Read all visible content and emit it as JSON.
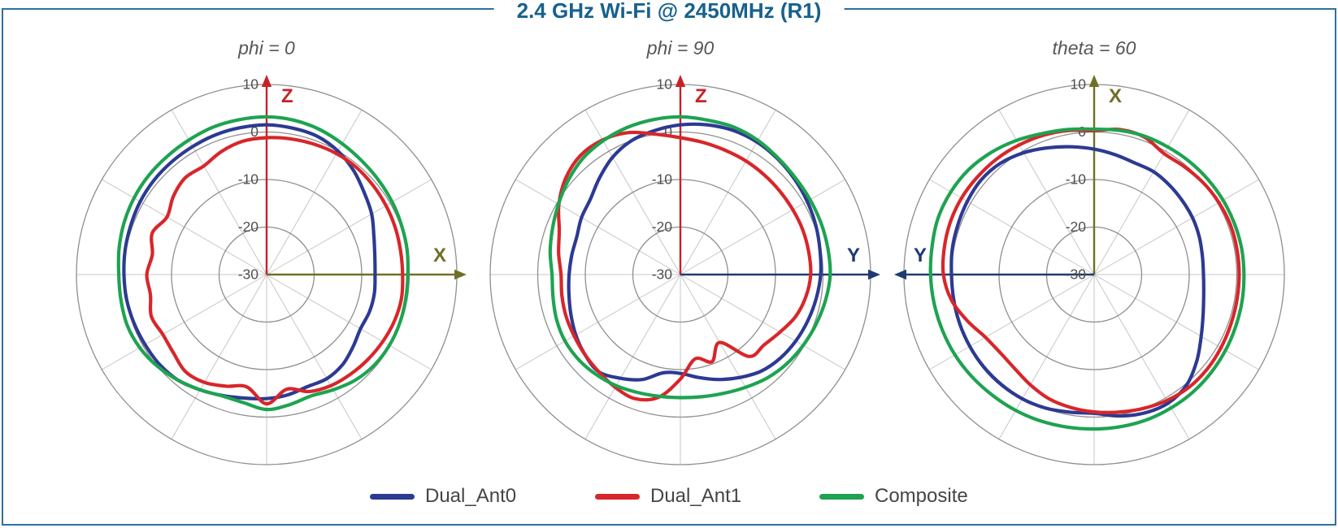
{
  "header": {
    "title": "2.4 GHz Wi-Fi @ 2450MHz (R1)"
  },
  "style": {
    "border_color": "#2e719f",
    "title_color": "#17618e",
    "plot_title_color": "#565656",
    "ring_color": "#8f8f8f",
    "spoke_color": "#c7c7c7",
    "tick_label_color": "#4f4f4f",
    "legend_text_color": "#454545"
  },
  "legend": {
    "items": [
      {
        "label": "Dual_Ant0",
        "color": "#2c3a92"
      },
      {
        "label": "Dual_Ant1",
        "color": "#d8262a"
      },
      {
        "label": "Composite",
        "color": "#1ea351"
      }
    ]
  },
  "chart_data": [
    {
      "type": "line",
      "polar": true,
      "title": "phi = 0",
      "radial_ticks": [
        10,
        0,
        -10,
        -20,
        -30
      ],
      "r_range": [
        -30,
        10
      ],
      "r_unit": "dB",
      "angle_zero": "top",
      "direction": "clockwise",
      "angle_step_deg": 10,
      "grid": {
        "spoke_step_deg": 30
      },
      "axes": [
        {
          "label": "Z",
          "direction": "up",
          "color": "#c62227"
        },
        {
          "label": "X",
          "direction": "right",
          "color": "#6f7026"
        }
      ],
      "series": [
        {
          "name": "Dual_Ant0",
          "color": "#2c3a92",
          "values": [
            1.5,
            1.3,
            1.0,
            0.0,
            -1.5,
            -3.2,
            -4.5,
            -6.0,
            -6.9,
            -7.2,
            -7.0,
            -7.0,
            -7.2,
            -6.3,
            -5.2,
            -4.7,
            -4.9,
            -4.3,
            -3.9,
            -3.6,
            -2.9,
            -2.0,
            -1.0,
            -0.6,
            -0.5,
            -0.3,
            -0.1,
            0.0,
            0.2,
            0.4,
            0.7,
            0.9,
            1.0,
            1.1,
            1.3,
            1.4
          ]
        },
        {
          "name": "Dual_Ant1",
          "color": "#d8262a",
          "values": [
            -1.2,
            -1.0,
            -0.8,
            -0.6,
            -0.6,
            -0.8,
            -1.0,
            -1.2,
            -1.4,
            -1.4,
            -1.2,
            -1.4,
            -1.8,
            -2.2,
            -2.6,
            -3.0,
            -3.8,
            -5.5,
            -2.8,
            -6.0,
            -5.0,
            -3.8,
            -3.4,
            -4.4,
            -4.8,
            -4.2,
            -5.2,
            -4.8,
            -5.6,
            -4.4,
            -5.8,
            -4.4,
            -3.4,
            -3.6,
            -2.4,
            -1.5
          ]
        },
        {
          "name": "Composite",
          "color": "#1ea351",
          "values": [
            3.2,
            3.0,
            2.5,
            1.8,
            1.2,
            0.8,
            0.5,
            0.2,
            0.0,
            -0.3,
            -0.3,
            -0.2,
            -0.2,
            -0.4,
            -1.0,
            -2.0,
            -2.8,
            -2.2,
            -1.6,
            -2.6,
            -2.8,
            -2.0,
            -1.0,
            0.0,
            0.8,
            1.2,
            1.1,
            1.1,
            1.5,
            1.9,
            2.2,
            2.4,
            2.5,
            2.7,
            3.0,
            3.1
          ]
        }
      ]
    },
    {
      "type": "line",
      "polar": true,
      "title": "phi = 90",
      "radial_ticks": [
        10,
        0,
        -10,
        -20,
        -30
      ],
      "r_range": [
        -30,
        10
      ],
      "r_unit": "dB",
      "angle_zero": "top",
      "direction": "clockwise",
      "angle_step_deg": 10,
      "grid": {
        "spoke_step_deg": 30
      },
      "axes": [
        {
          "label": "Z",
          "direction": "up",
          "color": "#c62227"
        },
        {
          "label": "Y",
          "direction": "right",
          "color": "#1f3a70"
        }
      ],
      "series": [
        {
          "name": "Dual_Ant0",
          "color": "#2c3a92",
          "values": [
            1.5,
            2.0,
            2.3,
            2.2,
            1.8,
            1.3,
            0.8,
            0.3,
            -0.2,
            -0.5,
            -1.0,
            -1.5,
            -2.0,
            -2.6,
            -3.5,
            -5.0,
            -6.5,
            -8.0,
            -9.2,
            -9.0,
            -6.5,
            -4.8,
            -3.3,
            -3.8,
            -4.6,
            -5.5,
            -6.2,
            -6.6,
            -6.8,
            -6.8,
            -6.0,
            -5.3,
            -3.5,
            -1.5,
            0.0,
            0.8
          ]
        },
        {
          "name": "Dual_Ant1",
          "color": "#d8262a",
          "values": [
            -1.2,
            -1.8,
            -2.2,
            -2.4,
            -2.6,
            -2.7,
            -2.7,
            -2.6,
            -2.6,
            -2.6,
            -3.2,
            -4.2,
            -5.8,
            -7.0,
            -7.5,
            -13.5,
            -10.5,
            -12.0,
            -8.0,
            -3.8,
            -2.2,
            -2.6,
            -3.3,
            -3.8,
            -4.2,
            -4.4,
            -4.7,
            -4.9,
            -4.0,
            -2.9,
            -0.5,
            1.5,
            2.7,
            2.7,
            1.8,
            0.0
          ]
        },
        {
          "name": "Composite",
          "color": "#1ea351",
          "values": [
            3.2,
            3.0,
            3.0,
            2.6,
            2.0,
            1.6,
            1.5,
            1.5,
            1.5,
            1.5,
            1.0,
            0.4,
            -0.2,
            -0.8,
            -1.6,
            -2.6,
            -3.4,
            -3.9,
            -4.1,
            -4.0,
            -3.6,
            -3.0,
            -2.5,
            -2.1,
            -2.0,
            -2.3,
            -2.8,
            -3.0,
            -2.2,
            -1.4,
            -0.4,
            0.8,
            1.9,
            2.5,
            2.9,
            3.1
          ]
        }
      ]
    },
    {
      "type": "line",
      "polar": true,
      "title": "theta = 60",
      "radial_ticks": [
        10,
        0,
        -10,
        -20,
        -30
      ],
      "r_range": [
        -30,
        10
      ],
      "r_unit": "dB",
      "angle_zero": "top",
      "direction": "clockwise",
      "angle_step_deg": 10,
      "grid": {
        "spoke_step_deg": 30
      },
      "axes": [
        {
          "label": "X",
          "direction": "up",
          "color": "#6f7026"
        },
        {
          "label": "Y",
          "direction": "left",
          "color": "#1f3a70"
        }
      ],
      "series": [
        {
          "name": "Dual_Ant0",
          "color": "#2c3a92",
          "values": [
            -3.6,
            -4.4,
            -5.0,
            -5.0,
            -5.4,
            -5.8,
            -6.1,
            -6.5,
            -6.9,
            -7.0,
            -6.6,
            -5.6,
            -4.0,
            -1.8,
            0.3,
            1.2,
            1.0,
            0.2,
            -0.8,
            -0.6,
            -0.1,
            0.2,
            0.3,
            0.3,
            0.2,
            0.1,
            0.0,
            0.0,
            0.3,
            0.5,
            0.8,
            1.0,
            0.6,
            -0.4,
            -1.6,
            -2.7
          ]
        },
        {
          "name": "Dual_Ant1",
          "color": "#d8262a",
          "values": [
            0.3,
            1.0,
            0.8,
            -0.6,
            -0.4,
            0.0,
            0.3,
            0.5,
            0.5,
            0.5,
            0.5,
            0.6,
            0.8,
            1.0,
            1.0,
            0.6,
            0.0,
            -0.6,
            -1.1,
            -1.6,
            -2.2,
            -3.2,
            -4.1,
            -4.3,
            -3.6,
            -1.6,
            0.5,
            1.7,
            2.0,
            2.2,
            2.2,
            2.0,
            1.8,
            1.5,
            1.2,
            0.8
          ]
        },
        {
          "name": "Composite",
          "color": "#1ea351",
          "values": [
            0.6,
            0.8,
            1.0,
            1.0,
            1.1,
            1.2,
            1.3,
            1.4,
            1.5,
            1.5,
            1.6,
            1.7,
            1.9,
            2.1,
            2.3,
            2.4,
            2.5,
            2.5,
            2.5,
            2.6,
            2.8,
            3.0,
            3.2,
            3.5,
            3.8,
            4.0,
            4.2,
            4.4,
            4.6,
            4.9,
            4.8,
            4.4,
            3.6,
            2.6,
            1.6,
            1.0
          ]
        }
      ]
    }
  ]
}
